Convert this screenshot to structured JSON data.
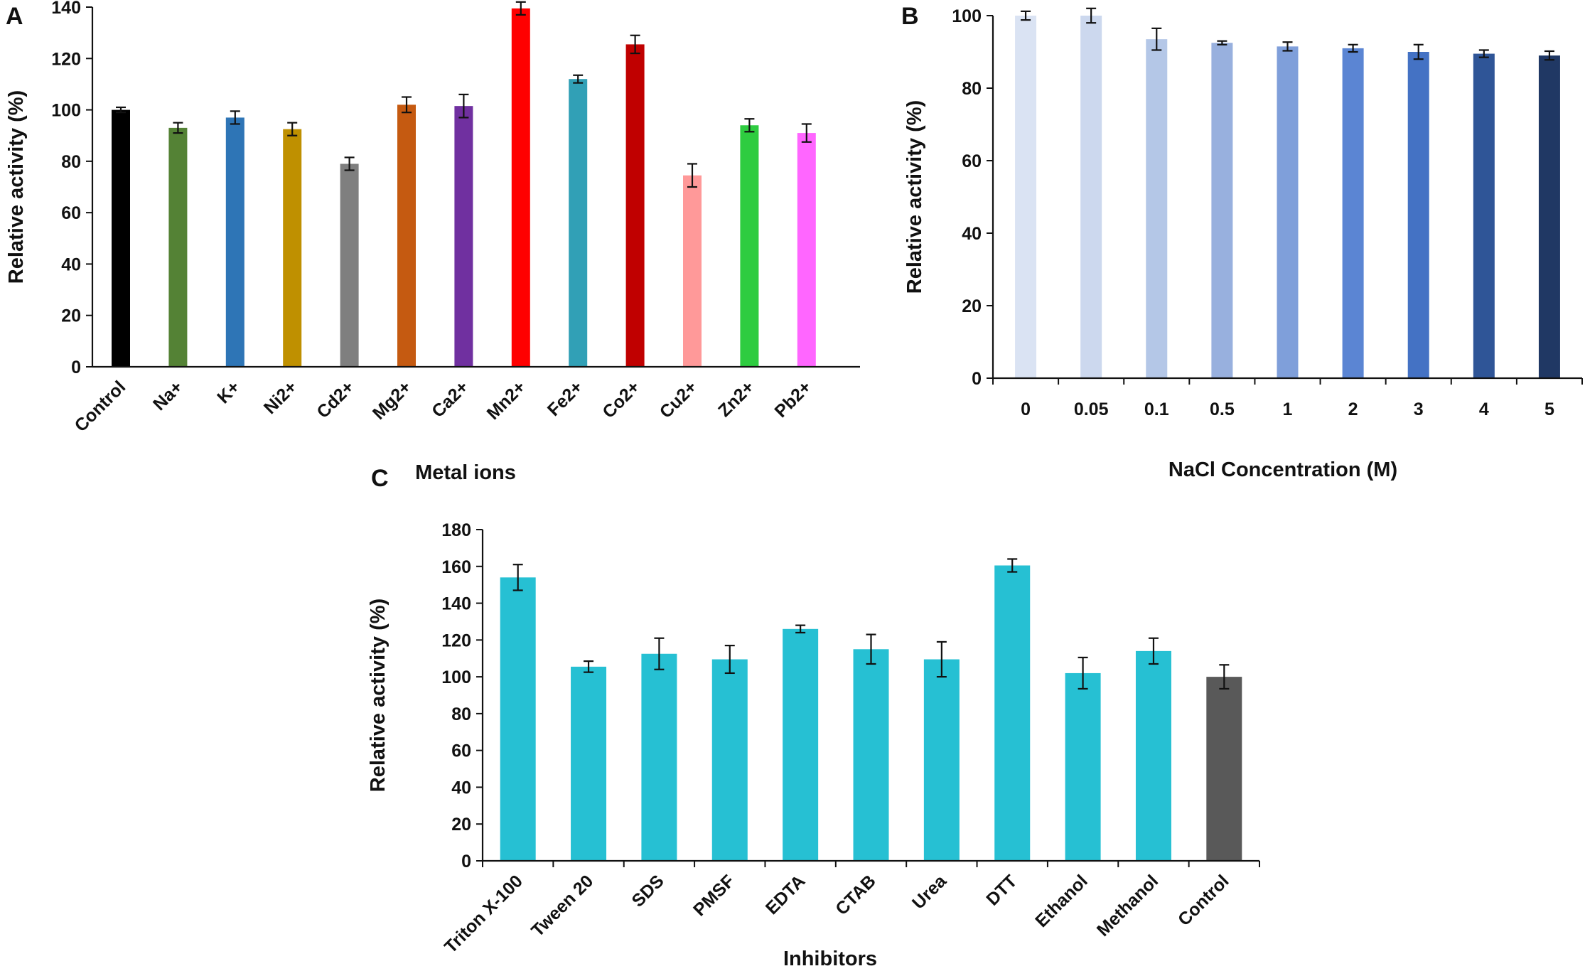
{
  "chart_data": [
    {
      "type": "bar",
      "panel_label": "A",
      "title": "",
      "xlabel": "Metal ions",
      "ylabel": "Relative activity (%)",
      "ylim": [
        0,
        140
      ],
      "yticks": [
        0,
        20,
        40,
        60,
        80,
        100,
        120,
        140
      ],
      "yticks_text": [
        "0",
        "20",
        "40",
        "60",
        "80",
        "100",
        "120",
        "140"
      ],
      "categories": [
        "Control",
        "Na+",
        "K+",
        "Ni2+",
        "Cd2+",
        "Mg2+",
        "Ca2+",
        "Mn2+",
        "Fe2+",
        "Co2+",
        "Cu2+",
        "Zn2+",
        "Pb2+"
      ],
      "values": [
        100,
        93,
        97,
        92.5,
        79,
        102,
        101.5,
        139.5,
        112,
        125.5,
        74.5,
        94,
        91
      ],
      "errors": [
        1,
        2,
        2.5,
        2.5,
        2.5,
        3,
        4.5,
        2.5,
        1.5,
        3.5,
        4.5,
        2.5,
        3.5
      ],
      "colors": [
        "#000000",
        "#548235",
        "#2E75B6",
        "#BF9000",
        "#7F7F7F",
        "#C55A11",
        "#7030A0",
        "#FF0000",
        "#31A0B6",
        "#C00000",
        "#FF9999",
        "#2ECC40",
        "#FF66FF"
      ],
      "grid": false,
      "legend": "none"
    },
    {
      "type": "bar",
      "panel_label": "B",
      "title": "",
      "xlabel": "NaCl Concentration (M)",
      "ylabel": "Relative activity (%)",
      "ylim": [
        0,
        100
      ],
      "yticks": [
        0,
        20,
        40,
        60,
        80,
        100
      ],
      "yticks_text": [
        "0",
        "20",
        "40",
        "60",
        "80",
        "100"
      ],
      "categories": [
        "0",
        "0.05",
        "0.1",
        "0.5",
        "1",
        "2",
        "3",
        "4",
        "5"
      ],
      "values": [
        100,
        100,
        93.5,
        92.5,
        91.5,
        91,
        90,
        89.5,
        89
      ],
      "errors": [
        1.2,
        2,
        3,
        0.5,
        1.2,
        1,
        2,
        1,
        1.2
      ],
      "colors": [
        "#DAE3F3",
        "#CCD8EE",
        "#B4C7E7",
        "#98B0DE",
        "#7F9FDA",
        "#5B85D3",
        "#4472C4",
        "#2F5597",
        "#203864"
      ],
      "grid": false,
      "legend": "none"
    },
    {
      "type": "bar",
      "panel_label": "C",
      "title": "",
      "xlabel": "Inhibitors",
      "ylabel": "Relative activity (%)",
      "ylim": [
        0,
        180
      ],
      "yticks": [
        0,
        20,
        40,
        60,
        80,
        100,
        120,
        140,
        160,
        180
      ],
      "yticks_text": [
        "0",
        "20",
        "40",
        "60",
        "80",
        "100",
        "120",
        "140",
        "160",
        "180"
      ],
      "categories": [
        "Triton X-100",
        "Tween 20",
        "SDS",
        "PMSF",
        "EDTA",
        "CTAB",
        "Urea",
        "DTT",
        "Ethanol",
        "Methanol",
        "Control"
      ],
      "values": [
        154,
        105.5,
        112.5,
        109.5,
        126,
        115,
        109.5,
        160.5,
        102,
        114,
        100
      ],
      "errors": [
        7,
        3,
        8.5,
        7.5,
        2,
        8,
        9.5,
        3.5,
        8.5,
        7,
        6.5
      ],
      "colors": [
        "#26C0D3",
        "#26C0D3",
        "#26C0D3",
        "#26C0D3",
        "#26C0D3",
        "#26C0D3",
        "#26C0D3",
        "#26C0D3",
        "#26C0D3",
        "#26C0D3",
        "#595959"
      ],
      "grid": false,
      "legend": "none"
    }
  ]
}
